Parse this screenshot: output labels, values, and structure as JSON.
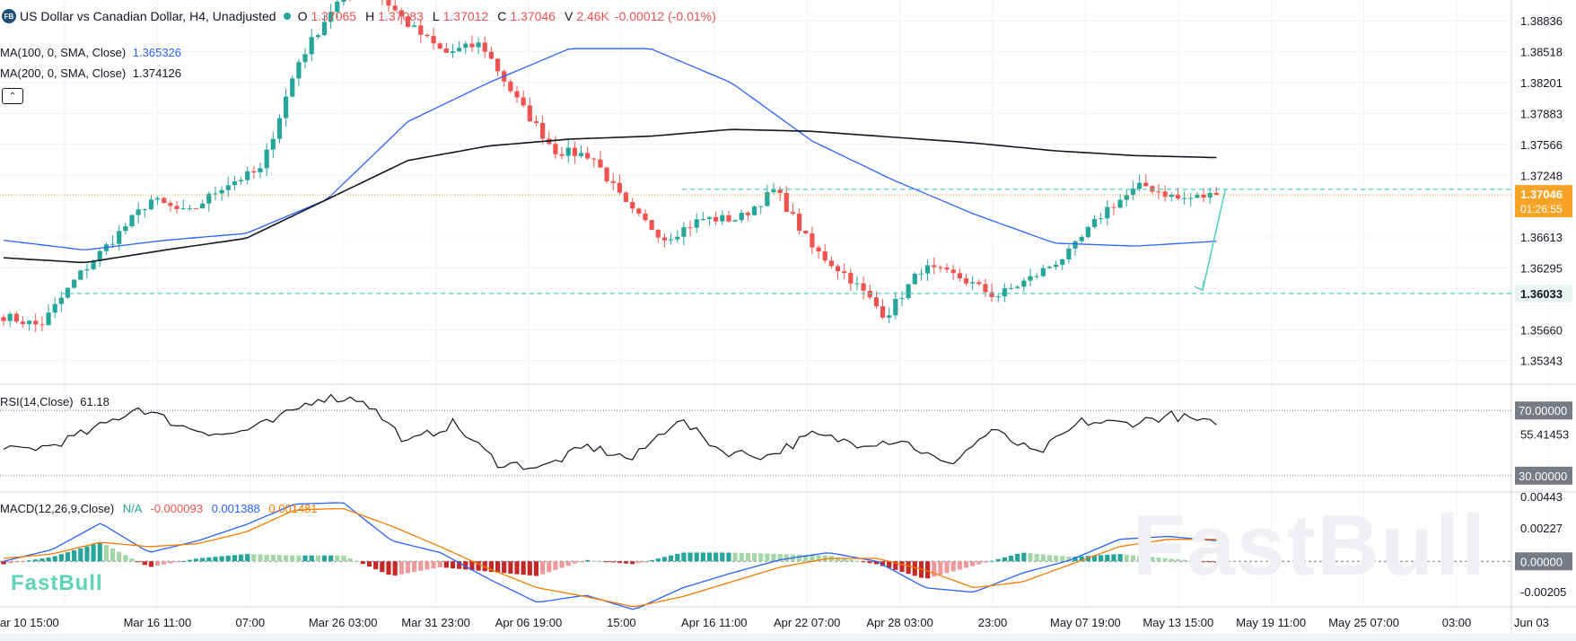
{
  "header": {
    "badge": "FB",
    "title": "US Dollar vs Canadian Dollar, H4, Unadjusted",
    "o_label": "O",
    "o_value": "1.37065",
    "h_label": "H",
    "h_value": "1.37083",
    "l_label": "L",
    "l_value": "1.37012",
    "c_label": "C",
    "c_value": "1.37046",
    "v_label": "V",
    "v_value": "2.46K",
    "change": "-0.00012 (-0.01%)"
  },
  "indicators": {
    "ma100_label": "MA(100, 0, SMA, Close)",
    "ma100_value": "1.365326",
    "ma200_label": "MA(200, 0, SMA, Close)",
    "ma200_value": "1.374126",
    "rsi_label": "RSI(14,Close)",
    "rsi_value": "61.18",
    "macd_label": "MACD(12,26,9,Close)",
    "macd_na": "N/A",
    "macd_hist": "-0.000093",
    "macd_line": "0.001388",
    "macd_signal": "0.001481"
  },
  "watermark": {
    "small": "FastBull",
    "big": "FastBull"
  },
  "colors": {
    "up": "#26a69a",
    "down": "#ef5350",
    "ma100": "#2962ff",
    "ma200": "#131722",
    "level": "#4dd0c0",
    "price_tag": "#f7a325",
    "macd_line": "#2962ff",
    "macd_signal": "#f57c00"
  },
  "chart_data": [
    {
      "type": "candlestick",
      "ylim": [
        1.351,
        1.3905
      ],
      "y_ticks": [
        "1.38836",
        "1.38518",
        "1.38201",
        "1.37883",
        "1.37566",
        "1.37248",
        "1.36613",
        "1.36295",
        "1.35660",
        "1.35343"
      ],
      "x_ticks": [
        "ar 10 15:00",
        "Mar 16 11:00",
        "07:00",
        "Mar 26 03:00",
        "Mar 31 23:00",
        "Apr 06 19:00",
        "15:00",
        "Apr 16 11:00",
        "Apr 22 07:00",
        "Apr 28 03:00",
        "23:00",
        "May 07 19:00",
        "May 13 15:00",
        "May 19 11:00",
        "May 25 07:00",
        "03:00",
        "Jun 03"
      ],
      "price_label": {
        "value": "1.37046",
        "timer": "01:26:55"
      },
      "levels": [
        {
          "value": 1.37104,
          "label": ""
        },
        {
          "value": 1.36033,
          "label": "1.36033"
        }
      ],
      "anchors": [
        [
          1.358,
          1.357
        ],
        [
          1.362,
          1.366
        ],
        [
          1.37,
          1.3685
        ],
        [
          1.3715,
          1.373
        ],
        [
          1.384,
          1.39
        ],
        [
          1.392,
          1.388
        ],
        [
          1.385,
          1.386
        ],
        [
          1.38,
          1.375
        ],
        [
          1.3745,
          1.369
        ],
        [
          1.366,
          1.368
        ],
        [
          1.368,
          1.371
        ],
        [
          1.365,
          1.362
        ],
        [
          1.358,
          1.363
        ],
        [
          1.362,
          1.36
        ],
        [
          1.362,
          1.3645
        ],
        [
          1.369,
          1.3715
        ],
        [
          1.37,
          1.3705
        ]
      ],
      "ma100": [
        [
          1.3658,
          1.3648
        ],
        [
          1.3658,
          1.3665
        ],
        [
          1.37,
          1.378
        ],
        [
          1.382,
          1.3855
        ],
        [
          1.3855,
          1.382
        ],
        [
          1.376,
          1.372
        ],
        [
          1.3685,
          1.3655
        ],
        [
          1.3652,
          1.3657
        ]
      ],
      "ma200": [
        [
          1.364,
          1.3635
        ],
        [
          1.3648,
          1.366
        ],
        [
          1.37,
          1.374
        ],
        [
          1.3755,
          1.3762
        ],
        [
          1.3765,
          1.3772
        ],
        [
          1.377,
          1.3764
        ],
        [
          1.3758,
          1.375
        ],
        [
          1.3745,
          1.3743
        ]
      ],
      "forecast": {
        "from": 1.37104,
        "to": 1.36067
      }
    },
    {
      "type": "line",
      "name": "RSI",
      "ylim": [
        20,
        85
      ],
      "y_ticks": [
        "70.00000",
        "55.41453",
        "30.00000"
      ],
      "bands": [
        70,
        30
      ],
      "anchors": [
        [
          45,
          48
        ],
        [
          58,
          72
        ],
        [
          60,
          55
        ],
        [
          63,
          78
        ],
        [
          77,
          50
        ],
        [
          62,
          38
        ],
        [
          35,
          48
        ],
        [
          40,
          65
        ],
        [
          45,
          42
        ],
        [
          55,
          50
        ],
        [
          52,
          36
        ],
        [
          58,
          43
        ],
        [
          63,
          62
        ],
        [
          67,
          61.18
        ]
      ]
    },
    {
      "type": "bar",
      "name": "MACD",
      "ylim": [
        -0.0031,
        0.0046
      ],
      "y_ticks": [
        "0.00443",
        "0.00227",
        "0.00000",
        "-0.00205"
      ],
      "macd_anchors": [
        [
          0.0,
          0.0008
        ],
        [
          0.0026,
          0.0006
        ],
        [
          0.0014,
          0.0025
        ],
        [
          0.0039,
          0.004
        ],
        [
          0.0014,
          0.0006
        ],
        [
          -0.0012,
          -0.0028
        ],
        [
          -0.0023,
          -0.0033
        ],
        [
          -0.0018,
          -0.0008
        ],
        [
          0.0001,
          0.0006
        ],
        [
          0.0,
          -0.0018
        ],
        [
          -0.0021,
          -0.0008
        ],
        [
          0.0001,
          0.0015
        ],
        [
          0.0017,
          0.0014
        ]
      ],
      "signal_anchors": [
        [
          0.0002,
          0.0005
        ],
        [
          0.0013,
          0.001
        ],
        [
          0.0012,
          0.002
        ],
        [
          0.0035,
          0.0036
        ],
        [
          0.0024,
          0.001
        ],
        [
          -0.0005,
          -0.0018
        ],
        [
          -0.0024,
          -0.0031
        ],
        [
          -0.0024,
          -0.0014
        ],
        [
          -0.0004,
          0.0002
        ],
        [
          0.0002,
          -0.0006
        ],
        [
          -0.0018,
          -0.0014
        ],
        [
          -0.0002,
          0.001
        ],
        [
          0.0015,
          0.0015
        ]
      ]
    }
  ]
}
